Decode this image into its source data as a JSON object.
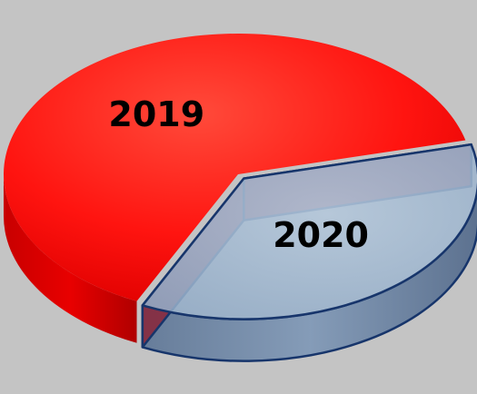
{
  "chart_data": {
    "type": "pie",
    "style": "3d",
    "categories": [
      "2019",
      "2020"
    ],
    "values": [
      64,
      36
    ],
    "colors": [
      "#ff0000",
      "#9fb6cf"
    ],
    "legend": "none",
    "title": ""
  },
  "colors": {
    "background": "#c4c4c4",
    "edge_2020": "#17356b"
  }
}
